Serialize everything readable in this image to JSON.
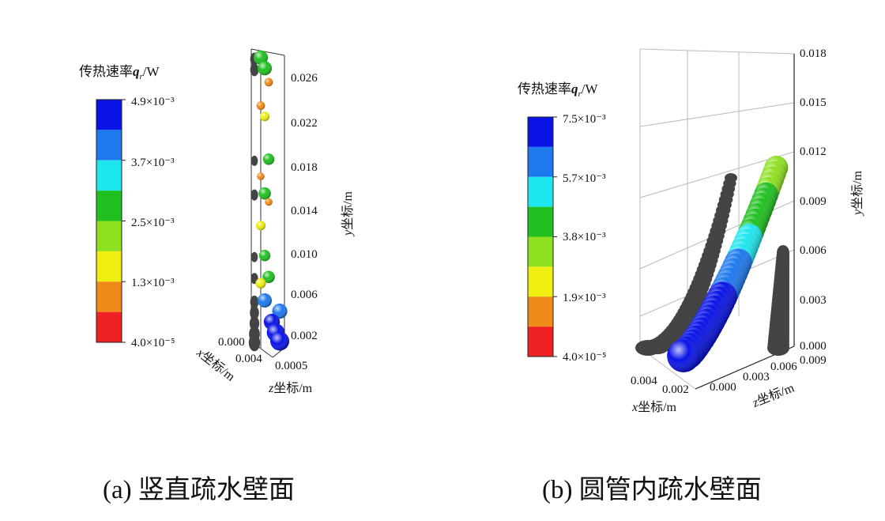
{
  "chart_data": [
    {
      "type": "scatter",
      "subtitle": "(a) 竖直疏水壁面",
      "colorbar": {
        "title_prefix": "传热速率",
        "title_var": "q",
        "title_sub": "r",
        "title_unit": "/W",
        "tick_labels": [
          "4.9×10⁻³",
          "3.7×10⁻³",
          "2.5×10⁻³",
          "1.3×10⁻³",
          "4.0×10⁻⁵"
        ],
        "colors": [
          "#0a14e6",
          "#1e78ee",
          "#1ee6ee",
          "#20c020",
          "#8ee020",
          "#eeee10",
          "#f08a18",
          "#ee2222"
        ],
        "range": [
          4e-05,
          0.0049
        ]
      },
      "axes": {
        "ylabel_var": "y",
        "ylabel_text": "坐标/m",
        "xlabel_var": "x",
        "xlabel_text": "坐标/m",
        "zlabel_var": "z",
        "zlabel_text": "坐标/m",
        "y_ticks": [
          "0.026",
          "0.022",
          "0.018",
          "0.014",
          "0.010",
          "0.006",
          "0.002"
        ],
        "x_ticks": [
          "0.000",
          "0.004"
        ],
        "z_ticks": [
          "0.0005"
        ],
        "ylim": [
          0.0,
          0.028
        ]
      },
      "droplets": [
        {
          "y": 0.0275,
          "q": 0.0025,
          "size": 1.0
        },
        {
          "y": 0.0265,
          "q": 0.0026,
          "size": 1.0
        },
        {
          "y": 0.0252,
          "q": 0.0012,
          "size": 0.4
        },
        {
          "y": 0.023,
          "q": 0.0012,
          "size": 0.4
        },
        {
          "y": 0.022,
          "q": 0.0016,
          "size": 0.5
        },
        {
          "y": 0.018,
          "q": 0.0026,
          "size": 0.7
        },
        {
          "y": 0.0164,
          "q": 0.001,
          "size": 0.3
        },
        {
          "y": 0.0148,
          "q": 0.0026,
          "size": 0.8
        },
        {
          "y": 0.014,
          "q": 0.0008,
          "size": 0.3
        },
        {
          "y": 0.0118,
          "q": 0.0015,
          "size": 0.5
        },
        {
          "y": 0.009,
          "q": 0.0026,
          "size": 0.7
        },
        {
          "y": 0.007,
          "q": 0.0026,
          "size": 0.8
        },
        {
          "y": 0.0064,
          "q": 0.0016,
          "size": 0.6
        },
        {
          "y": 0.0048,
          "q": 0.0038,
          "size": 1.0
        },
        {
          "y": 0.0038,
          "q": 0.0041,
          "size": 1.1
        },
        {
          "y": 0.0028,
          "q": 0.0045,
          "size": 1.2
        },
        {
          "y": 0.0018,
          "q": 0.0048,
          "size": 1.4
        },
        {
          "y": 0.001,
          "q": 0.0049,
          "size": 1.5
        }
      ]
    },
    {
      "type": "scatter",
      "subtitle": "(b) 圆管内疏水壁面",
      "colorbar": {
        "title_prefix": "传热速率",
        "title_var": "q",
        "title_sub": "r",
        "title_unit": "/W",
        "tick_labels": [
          "7.5×10⁻³",
          "5.7×10⁻³",
          "3.8×10⁻³",
          "1.9×10⁻³",
          "4.0×10⁻⁵"
        ],
        "colors": [
          "#0a14e6",
          "#1e78ee",
          "#1ee6ee",
          "#20c020",
          "#8ee020",
          "#eeee10",
          "#f08a18",
          "#ee2222"
        ],
        "range": [
          4e-05,
          0.0075
        ]
      },
      "axes": {
        "ylabel_var": "y",
        "ylabel_text": "坐标/m",
        "xlabel_var": "x",
        "xlabel_text": "坐标/m",
        "zlabel_var": "z",
        "zlabel_text": "坐标/m",
        "y_ticks": [
          "0.018",
          "0.015",
          "0.012",
          "0.009",
          "0.006",
          "0.003",
          "0.000"
        ],
        "x_ticks": [
          "0.004",
          "0.002",
          "0.000"
        ],
        "z_ticks": [
          "0.003",
          "0.006",
          "0.009"
        ],
        "ylim": [
          0.0,
          0.018
        ]
      },
      "droplets": [
        {
          "t": 0.0,
          "q": 0.0075,
          "size": 1.6
        },
        {
          "t": 0.1,
          "q": 0.0073,
          "size": 1.5
        },
        {
          "t": 0.2,
          "q": 0.0071,
          "size": 1.45
        },
        {
          "t": 0.3,
          "q": 0.0068,
          "size": 1.4
        },
        {
          "t": 0.4,
          "q": 0.0064,
          "size": 1.3
        },
        {
          "t": 0.5,
          "q": 0.0058,
          "size": 1.2
        },
        {
          "t": 0.6,
          "q": 0.0052,
          "size": 1.1
        },
        {
          "t": 0.7,
          "q": 0.0045,
          "size": 1.0
        },
        {
          "t": 0.8,
          "q": 0.004,
          "size": 0.95
        },
        {
          "t": 0.9,
          "q": 0.0036,
          "size": 0.9
        },
        {
          "t": 1.0,
          "q": 0.0033,
          "size": 0.85
        }
      ]
    }
  ]
}
